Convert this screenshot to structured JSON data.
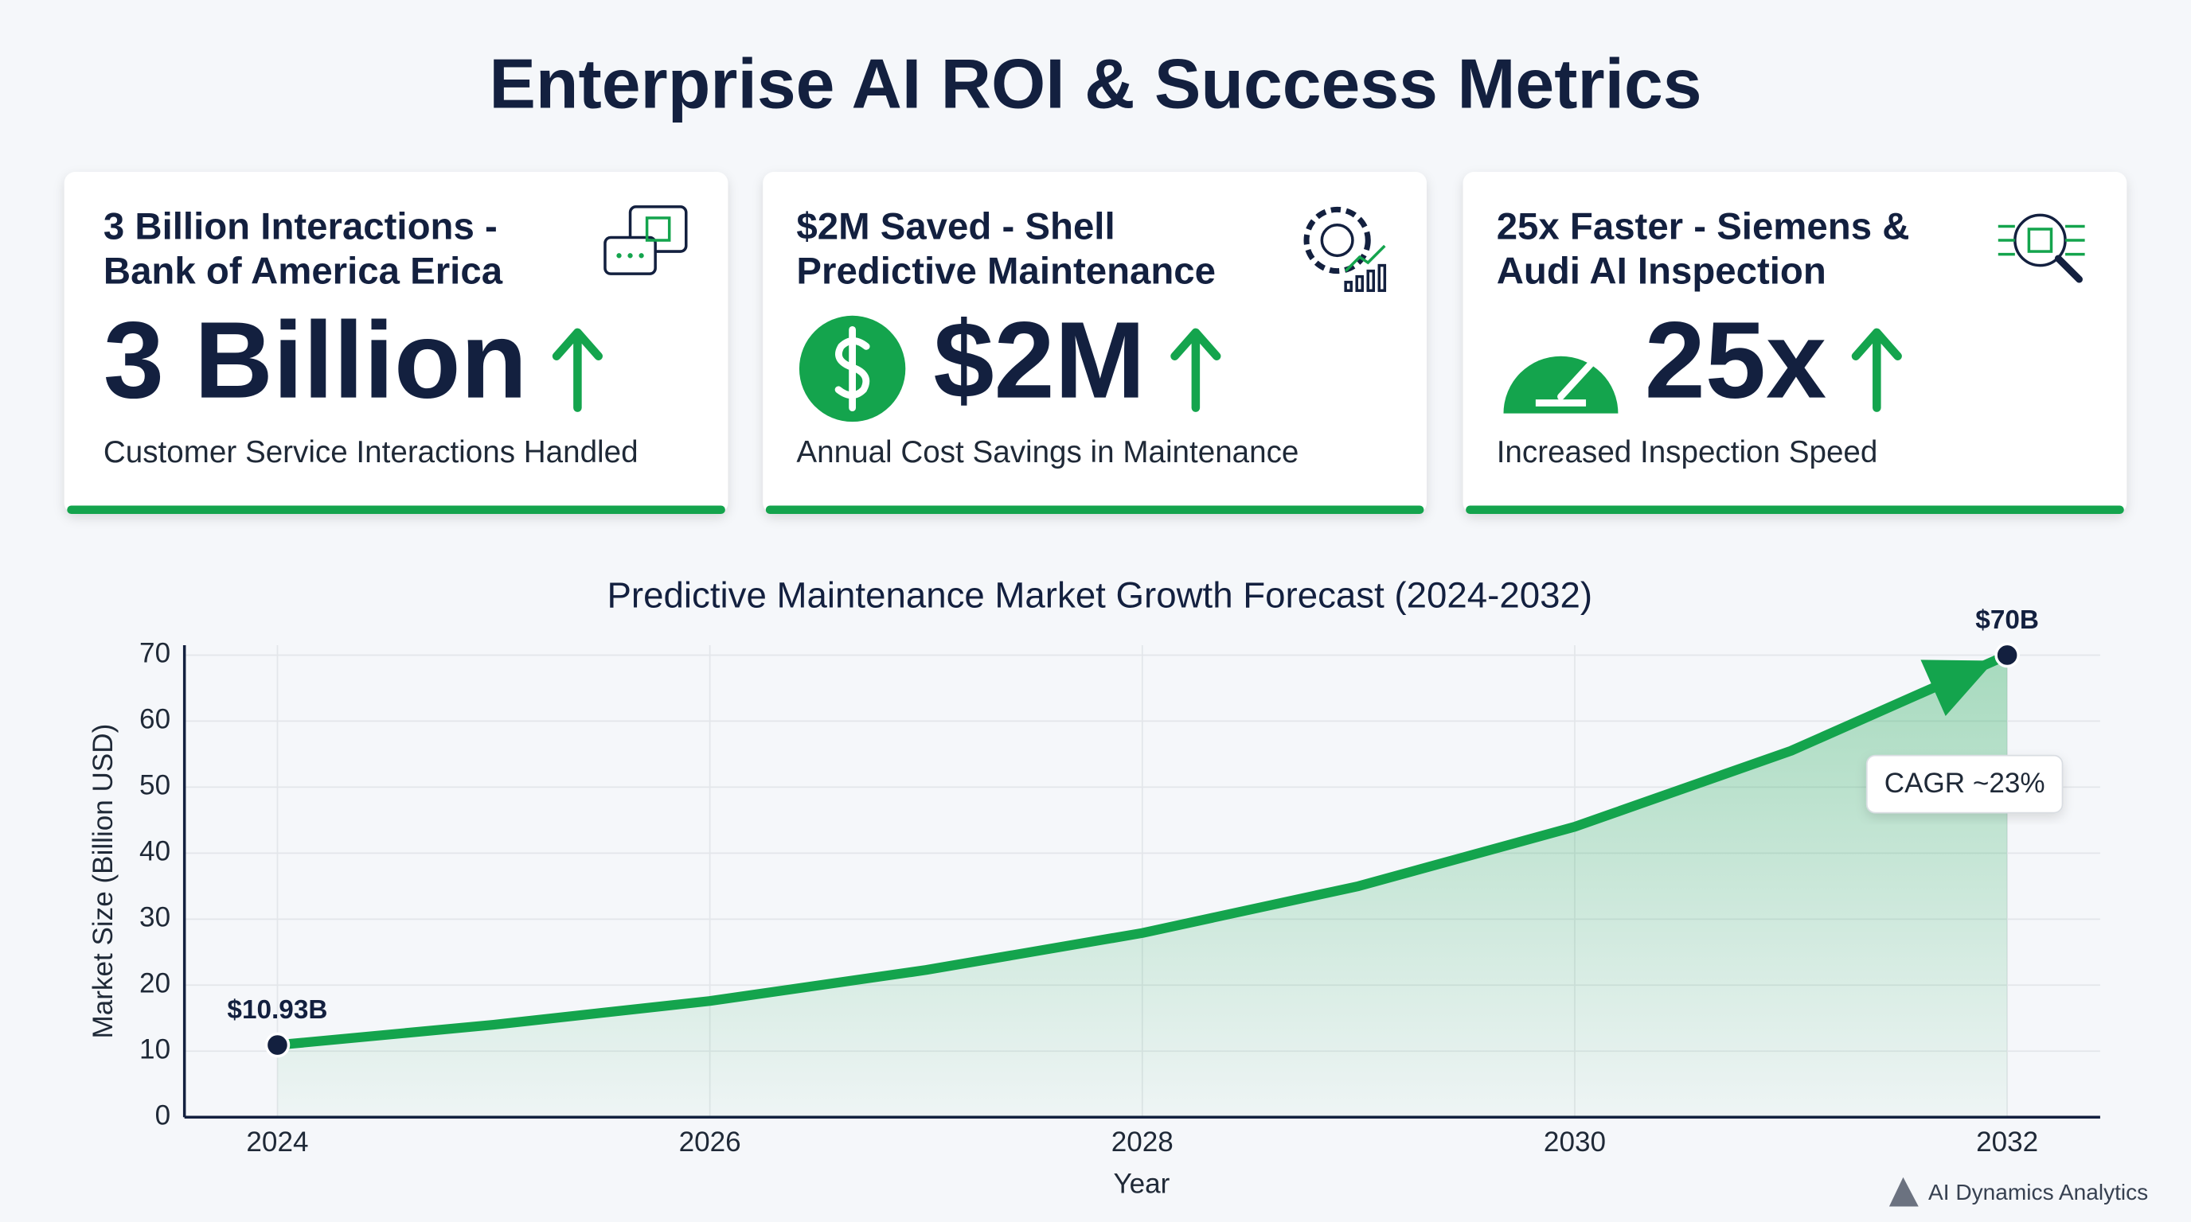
{
  "header": {
    "title": "Enterprise AI ROI & Success Metrics"
  },
  "cards": [
    {
      "title": [
        "3 Billion Interactions -",
        "Bank of America Erica"
      ],
      "value": "3 Billion",
      "description": "Customer Service Interactions Handled"
    },
    {
      "title": [
        "$2M Saved - Shell",
        "Predictive Maintenance"
      ],
      "value": "$2M",
      "description": "Annual Cost Savings in Maintenance"
    },
    {
      "title": [
        "25x Faster - Siemens &",
        "Audi AI Inspection"
      ],
      "value": "25x",
      "description": "Increased Inspection Speed"
    }
  ],
  "chart_data": {
    "type": "line",
    "title": "Predictive Maintenance Market Growth Forecast (2024-2032)",
    "x_label": "Year",
    "y_label": "Market Size (Billion USD)",
    "x": [
      2024,
      2025,
      2026,
      2027,
      2028,
      2029,
      2030,
      2031,
      2032
    ],
    "series": [
      {
        "name": "Market Size",
        "color": "#14a44d",
        "values": [
          10.93,
          14.0,
          17.6,
          22.3,
          27.9,
          35.0,
          44.0,
          55.5,
          70
        ],
        "value_labels": [
          "$10.93B",
          null,
          null,
          null,
          null,
          null,
          null,
          null,
          "$70B"
        ]
      }
    ],
    "xlim": [
      2023.57,
      2032.43
    ],
    "xticks": [
      2024,
      2026,
      2028,
      2030,
      2032
    ],
    "ylim": [
      0,
      71.5
    ],
    "yticks": [
      0,
      10,
      20,
      30,
      40,
      50,
      60,
      70
    ],
    "grid": true,
    "annotation": "CAGR ~23%"
  },
  "footer": {
    "brand": "AI Dynamics Analytics"
  }
}
